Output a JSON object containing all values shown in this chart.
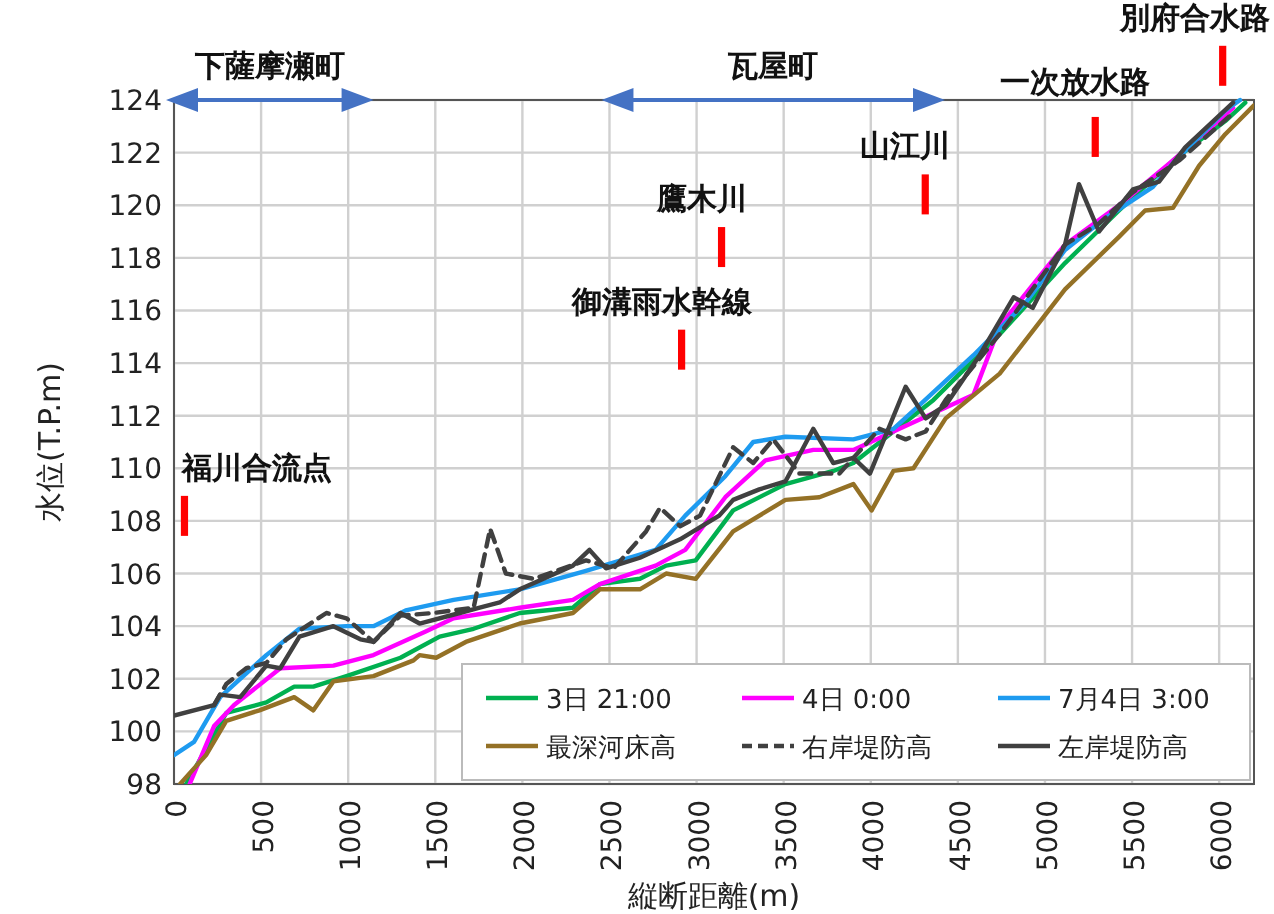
{
  "chart_data": {
    "type": "line",
    "xlabel": "縦断距離(m)",
    "ylabel": "水位(T.P.m)",
    "xlim": [
      0,
      6200
    ],
    "xticks": [
      0,
      500,
      1000,
      1500,
      2000,
      2500,
      3000,
      3500,
      4000,
      4500,
      5000,
      5500,
      6000
    ],
    "ylim": [
      98,
      124
    ],
    "yticks": [
      98,
      100,
      102,
      104,
      106,
      108,
      110,
      112,
      114,
      116,
      118,
      120,
      122,
      124
    ],
    "grid": true,
    "legend": "bottom right",
    "series": [
      {
        "name": "3日 21:00",
        "color": "#00b050",
        "x": [
          70,
          300,
          530,
          690,
          800,
          990,
          1300,
          1525,
          1720,
          1985,
          2290,
          2445,
          2675,
          2825,
          2995,
          3210,
          3510,
          3785,
          3900,
          4130,
          4360,
          4740,
          5115,
          5425,
          5735,
          6035,
          6150
        ],
        "values": [
          98,
          100.7,
          101.1,
          101.7,
          101.7,
          102.1,
          102.8,
          103.6,
          103.9,
          104.5,
          104.7,
          105.6,
          105.8,
          106.3,
          106.5,
          108.4,
          109.4,
          109.9,
          110.2,
          111.4,
          112.6,
          115.1,
          117.8,
          119.8,
          121.7,
          123.2,
          123.9
        ]
      },
      {
        "name": "4日 0:00",
        "color": "#ff00ff",
        "x": [
          90,
          230,
          345,
          610,
          915,
          1145,
          1445,
          1605,
          1985,
          2290,
          2445,
          2765,
          2935,
          3165,
          3395,
          3670,
          3900,
          4130,
          4590,
          4740,
          5115,
          5425,
          5735,
          6080
        ],
        "values": [
          98,
          100.2,
          101,
          102.4,
          102.5,
          102.9,
          103.8,
          104.3,
          104.7,
          105,
          105.6,
          106.3,
          106.9,
          108.9,
          110.3,
          110.7,
          110.7,
          111.4,
          112.8,
          115.4,
          118.5,
          120,
          121.7,
          123.7
        ]
      },
      {
        "name": "7月4日 3:00",
        "color": "#1e9bf0",
        "x": [
          0,
          115,
          265,
          530,
          720,
          990,
          1145,
          1330,
          1605,
          1985,
          2365,
          2765,
          2935,
          3165,
          3325,
          3510,
          3900,
          4130,
          4280,
          4590,
          4890,
          5115,
          5345,
          5620,
          5735,
          6035,
          6120
        ],
        "values": [
          99.1,
          99.6,
          101.3,
          102.9,
          103.9,
          104,
          104,
          104.6,
          105,
          105.4,
          106.1,
          106.9,
          108.2,
          109.7,
          111,
          111.2,
          111.1,
          111.5,
          112.4,
          114.3,
          116.3,
          118.3,
          119.5,
          120.7,
          121.6,
          123.6,
          124
        ]
      },
      {
        "name": "最深河床高",
        "color": "#947126",
        "x": [
          35,
          184,
          300,
          490,
          690,
          800,
          915,
          1145,
          1375,
          1410,
          1505,
          1675,
          1985,
          2290,
          2445,
          2675,
          2825,
          2995,
          3210,
          3510,
          3705,
          3900,
          4005,
          4130,
          4245,
          4430,
          4740,
          5115,
          5425,
          5575,
          5735,
          5885,
          6035,
          6200
        ],
        "values": [
          98,
          99.1,
          100.4,
          100.8,
          101.3,
          100.8,
          101.9,
          102.1,
          102.7,
          102.9,
          102.8,
          103.4,
          104.1,
          104.5,
          105.4,
          105.4,
          106,
          105.8,
          107.6,
          108.8,
          108.9,
          109.4,
          108.4,
          109.9,
          110,
          111.9,
          113.6,
          116.8,
          118.8,
          119.8,
          119.9,
          121.5,
          122.7,
          123.8
        ]
      },
      {
        "name": "右岸堤防高",
        "color": "#404040",
        "line_style": "dashed",
        "x": [
          230,
          300,
          415,
          530,
          645,
          875,
          990,
          1145,
          1300,
          1490,
          1720,
          1815,
          1905,
          2065,
          2365,
          2525,
          2710,
          2790,
          2905,
          3020,
          3210,
          3325,
          3440,
          3590,
          3820,
          4050,
          4200,
          4315,
          4430,
          4740,
          5115,
          5310,
          5505,
          5770,
          6080
        ],
        "values": [
          101,
          101.8,
          102.4,
          102.6,
          103.5,
          104.5,
          104.3,
          103.4,
          104.4,
          104.5,
          104.7,
          107.7,
          106,
          105.8,
          106.5,
          106.2,
          107.6,
          108.5,
          107.8,
          108.2,
          110.8,
          110.2,
          111.1,
          109.8,
          109.8,
          111.5,
          111.1,
          111.4,
          112.6,
          115.1,
          118.5,
          119.3,
          120.5,
          121.7,
          123.5
        ]
      },
      {
        "name": "左岸堤防高",
        "color": "#404040",
        "line_style": "solid",
        "x": [
          0,
          230,
          265,
          380,
          530,
          610,
          720,
          915,
          1070,
          1145,
          1300,
          1410,
          1640,
          1755,
          1870,
          1985,
          2290,
          2385,
          2480,
          2675,
          2905,
          3130,
          3210,
          3360,
          3510,
          3670,
          3785,
          3900,
          3995,
          4200,
          4315,
          4430,
          4625,
          4820,
          4930,
          5115,
          5195,
          5310,
          5505,
          5655,
          5805,
          6080
        ],
        "values": [
          100.6,
          101,
          101.4,
          101.3,
          102.5,
          102.4,
          103.6,
          104,
          103.5,
          103.4,
          104.5,
          104.1,
          104.5,
          104.7,
          104.9,
          105.4,
          106.3,
          106.9,
          106.2,
          106.6,
          107.3,
          108.2,
          108.8,
          109.2,
          109.5,
          111.5,
          110.2,
          110.4,
          109.8,
          113.1,
          111.9,
          112.4,
          114.3,
          116.5,
          116.1,
          118.5,
          120.8,
          119,
          120.6,
          120.9,
          122.2,
          123.9
        ]
      }
    ],
    "annotations": [
      "下薩摩瀬町",
      "瓦屋町",
      "別府合水路",
      "福川合流点",
      "御溝雨水幹線",
      "鷹木川",
      "山江川",
      "一次放水路"
    ]
  }
}
